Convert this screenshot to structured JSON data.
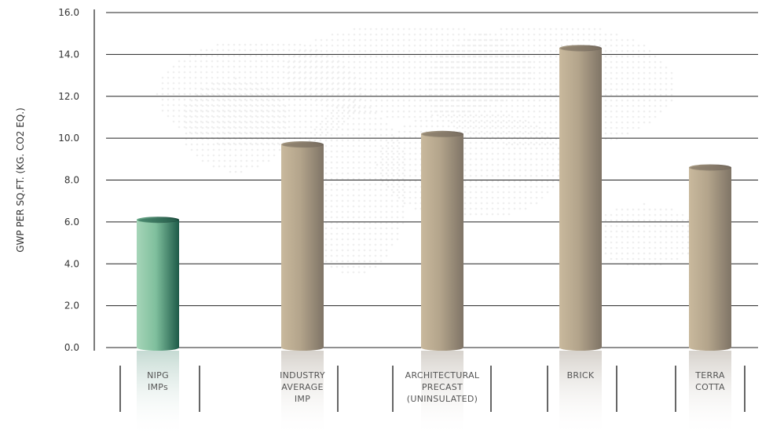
{
  "chart_data": {
    "type": "bar",
    "ylabel": "GWP PER SQ.FT. (KG. CO2 EQ.)",
    "ylim": [
      0,
      16
    ],
    "yticks": [
      "0.0",
      "2.0",
      "4.0",
      "6.0",
      "8.0",
      "10.0",
      "12.0",
      "14.0",
      "16.0"
    ],
    "grid": true,
    "categories": [
      [
        "NIPG",
        "IMPs"
      ],
      [
        "INDUSTRY",
        "AVERAGE",
        "IMP"
      ],
      [
        "ARCHITECTURAL",
        "PRECAST",
        "(UNINSULATED)"
      ],
      [
        "BRICK"
      ],
      [
        "TERRA",
        "COTTA"
      ]
    ],
    "values": [
      6.1,
      9.7,
      10.2,
      14.3,
      8.6
    ],
    "colors": {
      "highlight": [
        "#a6d5b8",
        "#1d5a48"
      ],
      "default": [
        "#cdbfa6",
        "#8b7e6d"
      ]
    },
    "highlight_index": 0
  }
}
